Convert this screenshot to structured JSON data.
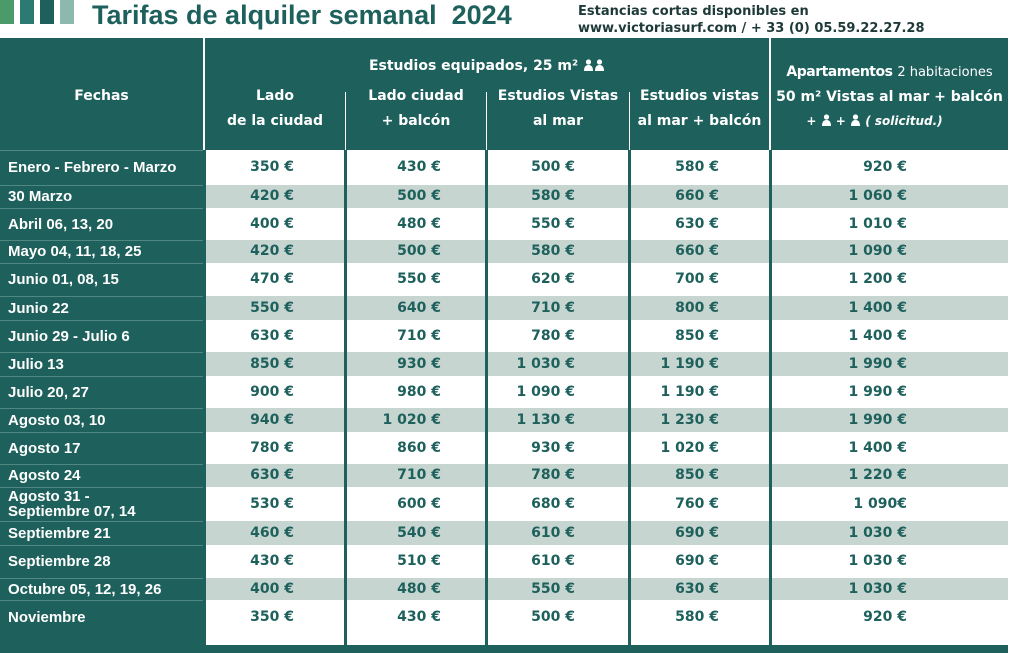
{
  "header": {
    "title": "Tarifas de alquiler semanal  2024",
    "contact": [
      "Estancias cortas disponibles en",
      "www.victoriasurf.com / + 33 (0) 05.59.22.27.28"
    ]
  },
  "table": {
    "header": {
      "dates": "Fechas",
      "group": "Estudios equipados, 25 m²",
      "columns": [
        [
          "Lado",
          "de la ciudad"
        ],
        [
          "Lado ciudad",
          "+ balcón"
        ],
        [
          "Estudios Vistas",
          "al mar"
        ],
        [
          "Estudios vistas",
          "al mar + balcón"
        ]
      ],
      "apartments": {
        "title": "Apartamentos",
        "subtitle": "2 habitaciones",
        "line2": "50 m² Vistas al mar + balcón",
        "plus": "+",
        "note": "( solicitud.)"
      }
    },
    "rows": [
      [
        "Enero - Febrero - Marzo",
        "350 €",
        "430 €",
        "500 €",
        "580 €",
        "920 €"
      ],
      [
        "30 Marzo",
        "420 €",
        "500 €",
        "580 €",
        "660 €",
        "1 060 €"
      ],
      [
        "Abril  06, 13,  20",
        "400 €",
        "480 €",
        "550 €",
        "630 €",
        "1 010 €"
      ],
      [
        "Mayo 04, 11, 18, 25",
        "420 €",
        "500 €",
        "580 €",
        "660 €",
        "1 090 €"
      ],
      [
        "Junio 01, 08, 15",
        "470 €",
        "550 €",
        "620 €",
        "700 €",
        "1 200 €"
      ],
      [
        "Junio 22",
        "550 €",
        "640 €",
        "710 €",
        "800 €",
        "1 400 €"
      ],
      [
        "Junio 29 - Julio 6",
        "630 €",
        "710 €",
        "780 €",
        "850 €",
        "1 400 €"
      ],
      [
        "Julio 13",
        "850 €",
        "930 €",
        "1 030 €",
        "1 190 €",
        "1 990 €"
      ],
      [
        "Julio 20, 27",
        "900 €",
        "980 €",
        "1 090 €",
        "1 190 €",
        "1 990 €"
      ],
      [
        "Agosto 03, 10",
        "940 €",
        "1 020 €",
        "1 130 €",
        "1 230 €",
        "1 990 €"
      ],
      [
        "Agosto 17",
        "780 €",
        "860 €",
        "930 €",
        "1 020 €",
        "1 400 €"
      ],
      [
        "Agosto 24",
        "630 €",
        "710 €",
        "780 €",
        "850 €",
        "1 220 €"
      ],
      [
        "Agosto 31 -\nSeptiembre 07, 14",
        "530 €",
        "600 €",
        "680 €",
        "760 €",
        "1 090€"
      ],
      [
        "Septiembre 21",
        "460 €",
        "540 €",
        "610 €",
        "690 €",
        "1 030 €"
      ],
      [
        "Septiembre 28",
        "430 €",
        "510 €",
        "610 €",
        "690 €",
        "1 030 €"
      ],
      [
        "Octubre 05, 12, 19, 26",
        "400 €",
        "480 €",
        "550 €",
        "630 €",
        "1 030 €"
      ],
      [
        "Noviembre",
        "350 €",
        "430 €",
        "500 €",
        "580 €",
        "920 €"
      ]
    ]
  }
}
